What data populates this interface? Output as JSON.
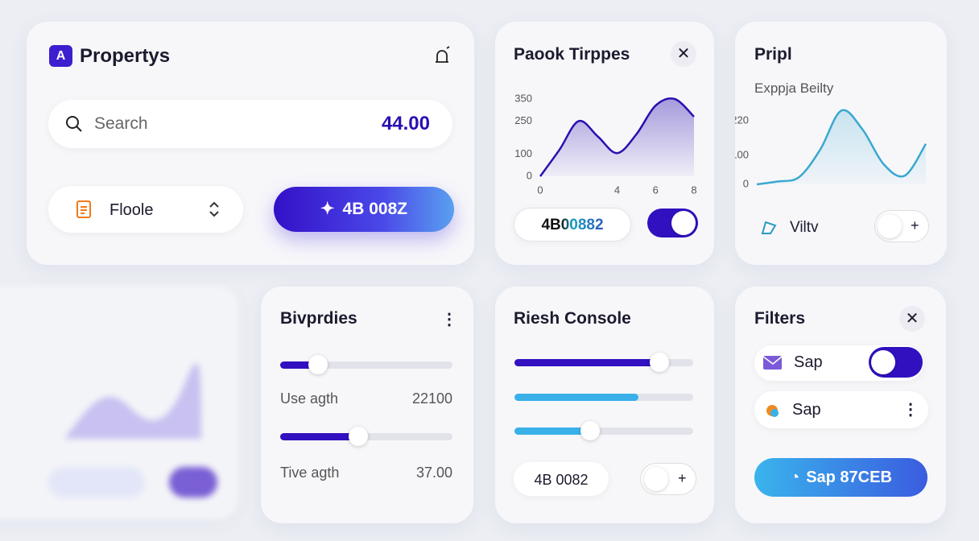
{
  "app": {
    "brand": "Propertys",
    "search": {
      "placeholder": "Search",
      "value": "44.00"
    },
    "select": "Floole",
    "button": "4B 008Z"
  },
  "trips": {
    "title": "Paook Tirppes",
    "chart_data": {
      "type": "area",
      "x": [
        0,
        1,
        2,
        3,
        4,
        5,
        6,
        7,
        8
      ],
      "values": [
        0,
        120,
        250,
        180,
        105,
        190,
        320,
        350,
        270
      ],
      "xlim": [
        0,
        8
      ],
      "ylim": [
        0,
        350
      ],
      "xticks": [
        0,
        4,
        6,
        8
      ],
      "yticks": [
        0,
        100,
        250,
        350
      ],
      "color": "#2a10b0"
    },
    "input": "4B00882"
  },
  "side": {
    "title": "Pripl",
    "subtitle": "Exppja Beilty",
    "chart_data": {
      "type": "line",
      "values": [
        0,
        10,
        25,
        120,
        255,
        190,
        70,
        30,
        140
      ],
      "ylim": [
        0,
        270
      ],
      "yticks": [
        0,
        100,
        220
      ],
      "color": "#3aa8d0"
    },
    "label": "Viltv"
  },
  "ranges": {
    "title": "Bivprdies",
    "rows": [
      {
        "label": "Use agth",
        "value": "22100"
      },
      {
        "label": "Tive agth",
        "value": "37.00"
      }
    ]
  },
  "console": {
    "title": "Riesh Console",
    "input": "4B 0082"
  },
  "filters": {
    "title": "Filters",
    "items": [
      "Sap",
      "Sap"
    ],
    "button": "Sap 87CEB"
  }
}
